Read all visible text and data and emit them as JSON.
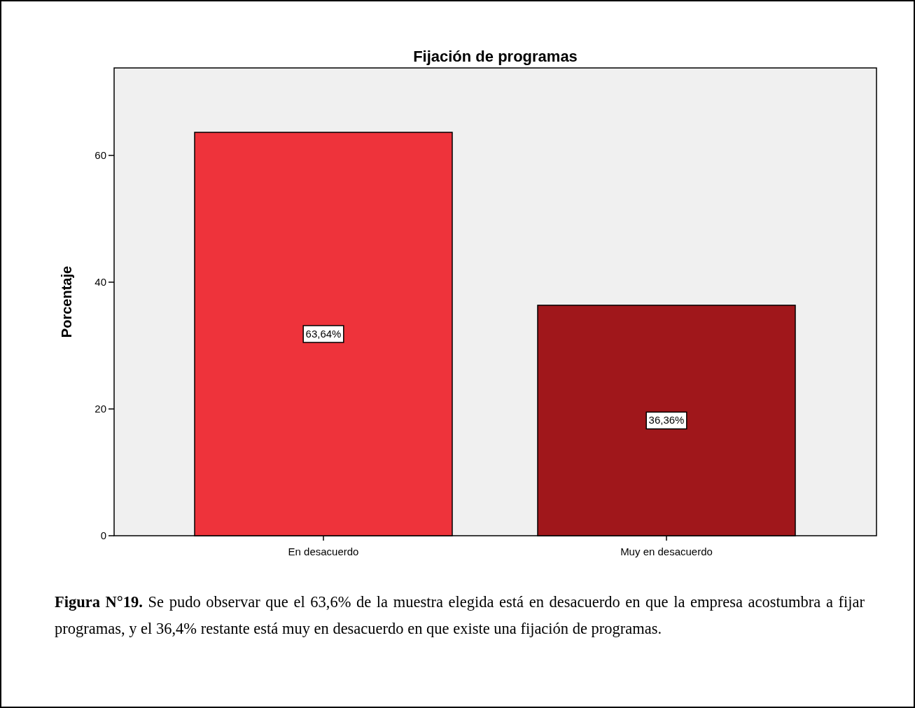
{
  "chart_data": {
    "type": "bar",
    "title": "Fijación de programas",
    "ylabel": "Porcentaje",
    "categories": [
      "En desacuerdo",
      "Muy en desacuerdo"
    ],
    "values": [
      63.64,
      36.36
    ],
    "value_labels": [
      "63,64%",
      "36,36%"
    ],
    "colors": [
      "#ee333b",
      "#a0171b"
    ],
    "ylim": [
      0,
      73.8
    ],
    "yticks": [
      0,
      20,
      40,
      60
    ],
    "annotations": [
      "Figura N°19.",
      "Se pudo observar que el 63,6% de la muestra elegida está en desacuerdo en que la empresa acostumbra a fijar programas, y el 36,4% restante está muy en desacuerdo en que existe una fijación de programas."
    ]
  }
}
